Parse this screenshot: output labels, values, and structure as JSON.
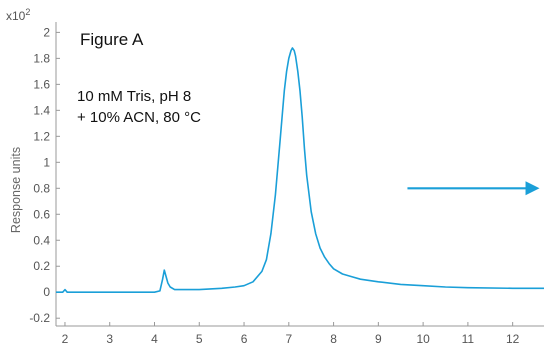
{
  "chart_data": {
    "type": "line",
    "title": "Figure A",
    "ylabel": "Response units",
    "xlabel": "",
    "y_multiplier": {
      "base": "x10",
      "exponent": "2"
    },
    "annotation_lines": [
      "10 mM Tris, pH 8",
      "+ 10% ACN, 80 °C"
    ],
    "xlim": [
      1.8,
      12.7
    ],
    "ylim": [
      -0.26,
      2.08
    ],
    "x_ticks": [
      2,
      3,
      4,
      5,
      6,
      7,
      8,
      9,
      10,
      11,
      12
    ],
    "y_ticks": [
      -0.2,
      0,
      0.2,
      0.4,
      0.6,
      0.8,
      1,
      1.2,
      1.4,
      1.6,
      1.8,
      2
    ],
    "y_tick_labels": [
      "-0.2",
      "0",
      "0.2",
      "0.4",
      "0.6",
      "0.8",
      "1",
      "1.2",
      "1.4",
      "1.6",
      "1.8",
      "2"
    ],
    "grid": false,
    "colors": {
      "series": "#1a9fd8",
      "arrow": "#1a9fd8",
      "axis": "#999999"
    },
    "arrow": {
      "x_start": 9.65,
      "x_end": 12.6,
      "y": 0.8
    },
    "series": [
      {
        "x": [
          1.8,
          1.95,
          2.0,
          2.05,
          2.1,
          2.2,
          3.0,
          4.0,
          4.12,
          4.18,
          4.22,
          4.26,
          4.3,
          4.35,
          4.45,
          4.6,
          5.0,
          5.5,
          5.8,
          6.0,
          6.2,
          6.4,
          6.5,
          6.6,
          6.7,
          6.8,
          6.85,
          6.9,
          6.95,
          7.0,
          7.05,
          7.08,
          7.12,
          7.15,
          7.2,
          7.25,
          7.3,
          7.35,
          7.4,
          7.5,
          7.6,
          7.7,
          7.8,
          7.9,
          8.0,
          8.2,
          8.4,
          8.6,
          9.0,
          9.5,
          10.0,
          10.5,
          11.0,
          12.0,
          12.7
        ],
        "y": [
          0.0,
          0.0,
          0.02,
          0.0,
          0.0,
          0.0,
          0.0,
          0.0,
          0.01,
          0.1,
          0.17,
          0.12,
          0.07,
          0.04,
          0.02,
          0.02,
          0.02,
          0.03,
          0.04,
          0.05,
          0.08,
          0.16,
          0.25,
          0.45,
          0.75,
          1.15,
          1.35,
          1.55,
          1.7,
          1.8,
          1.86,
          1.88,
          1.86,
          1.82,
          1.7,
          1.55,
          1.35,
          1.1,
          0.9,
          0.62,
          0.45,
          0.34,
          0.27,
          0.22,
          0.18,
          0.14,
          0.12,
          0.1,
          0.08,
          0.06,
          0.05,
          0.04,
          0.035,
          0.03,
          0.03
        ]
      }
    ]
  }
}
